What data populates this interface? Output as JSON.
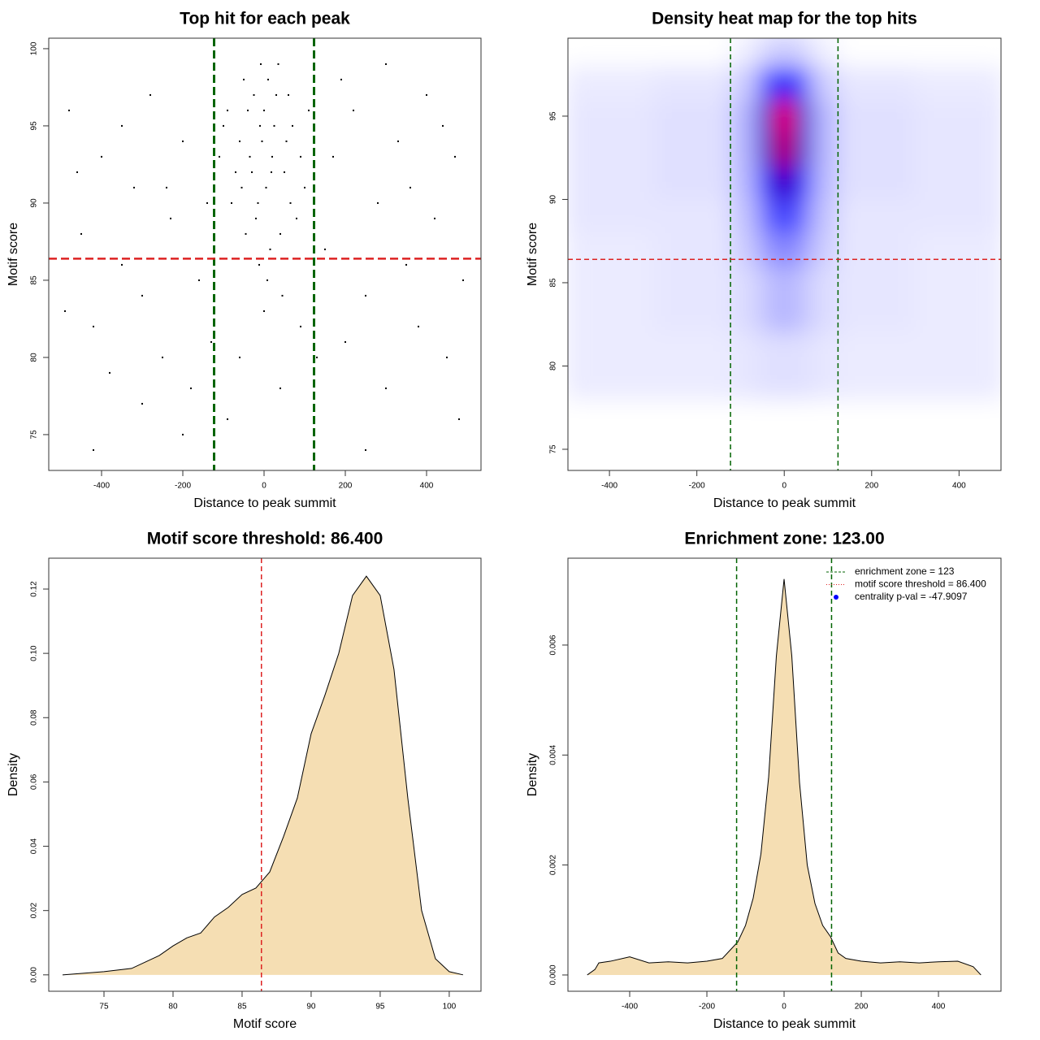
{
  "chart_data": [
    {
      "type": "scatter",
      "title": "Top hit for each peak",
      "xlabel": "Distance to peak summit",
      "ylabel": "Motif score",
      "xlim": [
        -530,
        534
      ],
      "ylim": [
        72.68,
        100.68
      ],
      "xticks": [
        -400,
        -200,
        0,
        200,
        400
      ],
      "yticks": [
        75,
        80,
        85,
        90,
        95,
        100
      ],
      "color": "#000000",
      "x": [
        -10,
        20,
        -40,
        5,
        30,
        -60,
        50,
        -20,
        70,
        -80,
        10,
        -5,
        40,
        -30,
        60,
        -90,
        90,
        0,
        -15,
        25,
        -50,
        15,
        -70,
        80,
        -100,
        100,
        35,
        -25,
        55,
        -45,
        8,
        -12,
        45,
        -35,
        65,
        -110,
        110,
        -8,
        18,
        -55,
        -480,
        -450,
        -420,
        -400,
        -380,
        -350,
        -320,
        -300,
        -280,
        -250,
        -230,
        -200,
        -180,
        -160,
        -140,
        -420,
        -200,
        -300,
        -460,
        -350,
        150,
        170,
        200,
        220,
        250,
        280,
        300,
        330,
        350,
        380,
        400,
        420,
        450,
        470,
        490,
        250,
        480,
        300,
        130,
        -130,
        -60,
        40,
        0,
        -90,
        90,
        190,
        -240,
        360,
        -490,
        440
      ],
      "y": [
        95,
        93,
        96,
        91,
        97,
        94,
        92,
        89,
        95,
        90,
        98,
        94,
        88,
        92,
        97,
        96,
        93,
        96,
        90,
        95,
        98,
        87,
        92,
        89,
        95,
        91,
        99,
        97,
        94,
        88,
        85,
        86,
        84,
        93,
        90,
        93,
        96,
        99,
        92,
        91,
        96,
        88,
        82,
        93,
        79,
        86,
        91,
        84,
        97,
        80,
        89,
        94,
        78,
        85,
        90,
        74,
        75,
        77,
        92,
        95,
        87,
        93,
        81,
        96,
        84,
        90,
        78,
        94,
        86,
        82,
        97,
        89,
        80,
        93,
        85,
        74,
        76,
        99,
        80,
        81,
        80,
        78,
        83,
        76,
        82,
        98,
        91,
        91,
        83,
        95
      ],
      "vlines": [
        -123,
        123
      ],
      "vline_color": "#006400",
      "hline": 86.4,
      "hline_color": "#dd2222"
    },
    {
      "type": "heatmap",
      "title": "Density heat map for the top hits",
      "xlabel": "Distance to peak summit",
      "ylabel": "Motif score",
      "xlim": [
        -495,
        496
      ],
      "ylim": [
        73.73,
        99.68
      ],
      "xticks": [
        -400,
        -200,
        0,
        200,
        400
      ],
      "yticks": [
        75,
        80,
        85,
        90,
        95
      ],
      "xbins": [
        -500,
        -300,
        -120,
        -60,
        -20,
        20,
        60,
        120,
        300,
        500
      ],
      "ybins": [
        74,
        78,
        82,
        86,
        88,
        90,
        92,
        94,
        96,
        98,
        100
      ],
      "z": [
        [
          0,
          0,
          0,
          0,
          0,
          0,
          0,
          0,
          0
        ],
        [
          0.04,
          0.04,
          0.05,
          0.06,
          0.06,
          0.06,
          0.05,
          0.04,
          0.04
        ],
        [
          0.04,
          0.05,
          0.07,
          0.12,
          0.15,
          0.12,
          0.07,
          0.05,
          0.04
        ],
        [
          0.04,
          0.05,
          0.1,
          0.2,
          0.25,
          0.2,
          0.1,
          0.05,
          0.04
        ],
        [
          0.05,
          0.05,
          0.12,
          0.3,
          0.4,
          0.3,
          0.12,
          0.05,
          0.05
        ],
        [
          0.05,
          0.06,
          0.14,
          0.5,
          0.65,
          0.5,
          0.14,
          0.06,
          0.05
        ],
        [
          0.05,
          0.06,
          0.15,
          0.6,
          0.9,
          0.6,
          0.15,
          0.06,
          0.05
        ],
        [
          0.05,
          0.06,
          0.15,
          0.6,
          1.0,
          0.6,
          0.15,
          0.06,
          0.05
        ],
        [
          0.04,
          0.05,
          0.1,
          0.35,
          0.5,
          0.35,
          0.1,
          0.05,
          0.04
        ],
        [
          0,
          0,
          0.03,
          0.08,
          0.1,
          0.08,
          0.03,
          0,
          0
        ]
      ],
      "colors": [
        "#ffffff",
        "#0000ff",
        "#ff0000"
      ],
      "vlines": [
        -123,
        123
      ],
      "vline_color": "#006400",
      "hline": 86.4,
      "hline_color": "#dd2222"
    },
    {
      "type": "density",
      "title": "Motif score threshold: 86.400",
      "xlabel": "Motif score",
      "ylabel": "Density",
      "xlim": [
        71,
        102.3
      ],
      "ylim": [
        -0.0051,
        0.1296
      ],
      "xticks": [
        75,
        80,
        85,
        90,
        95,
        100
      ],
      "yticks": [
        {
          "value": 0,
          "label": "0.00"
        },
        {
          "value": 0.02,
          "label": "0.02"
        },
        {
          "value": 0.04,
          "label": "0.04"
        },
        {
          "value": 0.06,
          "label": "0.06"
        },
        {
          "value": 0.08,
          "label": "0.08"
        },
        {
          "value": 0.1,
          "label": "0.10"
        },
        {
          "value": 0.12,
          "label": "0.12"
        }
      ],
      "x": [
        72,
        75,
        77,
        79,
        80,
        81,
        82,
        83,
        84,
        85,
        86,
        87,
        88,
        89,
        90,
        91,
        92,
        93,
        94,
        95,
        96,
        97,
        98,
        99,
        100,
        101
      ],
      "values": [
        0,
        0.001,
        0.002,
        0.006,
        0.009,
        0.0115,
        0.013,
        0.018,
        0.021,
        0.025,
        0.027,
        0.032,
        0.043,
        0.055,
        0.075,
        0.087,
        0.1,
        0.118,
        0.124,
        0.118,
        0.095,
        0.055,
        0.02,
        0.005,
        0.001,
        0
      ],
      "fill": "#f5deb3",
      "vlines": [
        86.4
      ],
      "vline_color": "#dd2222"
    },
    {
      "type": "density",
      "title": "Enrichment zone: 123.00",
      "xlabel": "Distance to peak summit",
      "ylabel": "Density",
      "xlim": [
        -560,
        562
      ],
      "ylim": [
        -0.000296,
        0.00758
      ],
      "xticks": [
        -400,
        -200,
        0,
        200,
        400
      ],
      "yticks": [
        {
          "value": 0,
          "label": "0.000"
        },
        {
          "value": 0.002,
          "label": "0.002"
        },
        {
          "value": 0.004,
          "label": "0.004"
        },
        {
          "value": 0.006,
          "label": "0.006"
        }
      ],
      "x": [
        -510,
        -490,
        -480,
        -450,
        -400,
        -350,
        -300,
        -250,
        -200,
        -160,
        -140,
        -120,
        -100,
        -80,
        -60,
        -40,
        -20,
        0,
        20,
        40,
        60,
        80,
        100,
        120,
        140,
        160,
        200,
        250,
        300,
        350,
        400,
        450,
        490,
        510
      ],
      "values": [
        0,
        0.0001,
        0.00022,
        0.00025,
        0.00033,
        0.00022,
        0.00024,
        0.00022,
        0.00025,
        0.0003,
        0.00045,
        0.0006,
        0.0009,
        0.0014,
        0.0022,
        0.0036,
        0.0058,
        0.0072,
        0.0058,
        0.0035,
        0.002,
        0.0013,
        0.0009,
        0.0007,
        0.0004,
        0.0003,
        0.00025,
        0.00022,
        0.00024,
        0.00022,
        0.00024,
        0.00025,
        0.00015,
        0
      ],
      "fill": "#f5deb3",
      "vlines": [
        -123,
        123
      ],
      "vline_color": "#006400",
      "legend_position": "top-right",
      "legend": [
        {
          "label": "enrichment zone = 123",
          "color": "#006400",
          "style": "dashed"
        },
        {
          "label": "motif score threshold = 86.400",
          "color": "#dd2222",
          "style": "dotted"
        },
        {
          "label": "centrality p-val = -47.9097",
          "color": "#0000ff",
          "style": "point"
        }
      ]
    }
  ]
}
